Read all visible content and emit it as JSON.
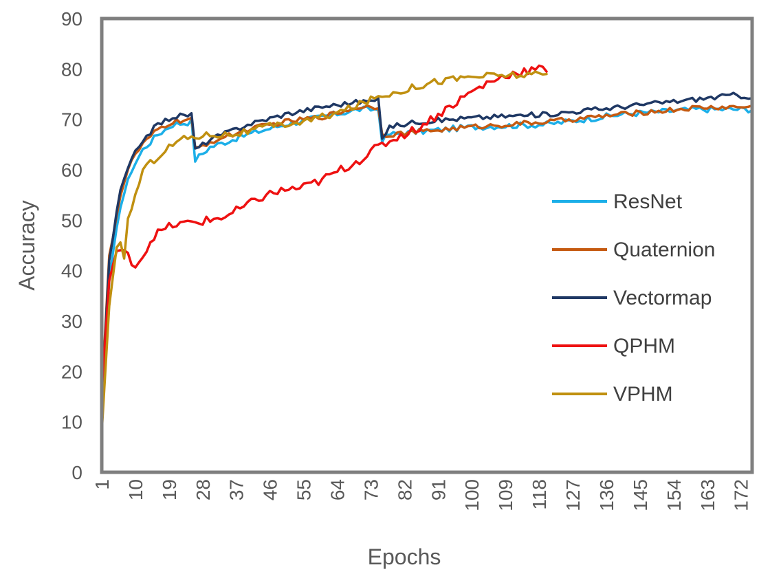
{
  "chart_data": {
    "type": "line",
    "title": "",
    "xlabel": "Epochs",
    "ylabel": "Accuracy",
    "xlim": [
      1,
      175
    ],
    "ylim": [
      0,
      90
    ],
    "y_ticks": [
      0,
      10,
      20,
      30,
      40,
      50,
      60,
      70,
      80,
      90
    ],
    "x_ticks": [
      1,
      10,
      19,
      28,
      37,
      46,
      55,
      64,
      73,
      82,
      91,
      100,
      109,
      118,
      127,
      136,
      145,
      154,
      163,
      172
    ],
    "y_tick_labels": [
      "0",
      "10",
      "20",
      "30",
      "40",
      "50",
      "60",
      "70",
      "80",
      "90"
    ],
    "x_tick_labels": [
      "1",
      "10",
      "19",
      "28",
      "37",
      "46",
      "55",
      "64",
      "73",
      "82",
      "91",
      "100",
      "109",
      "118",
      "127",
      "136",
      "145",
      "154",
      "163",
      "172"
    ],
    "grid": false,
    "legend": "right",
    "series": [
      {
        "name": "ResNet",
        "color": "#1CAFE8",
        "anchors": [
          [
            1,
            13
          ],
          [
            3,
            38
          ],
          [
            6,
            53
          ],
          [
            9,
            60
          ],
          [
            12,
            64
          ],
          [
            16,
            67
          ],
          [
            20,
            69
          ],
          [
            25,
            69.5
          ],
          [
            26,
            62
          ],
          [
            30,
            64.5
          ],
          [
            40,
            67
          ],
          [
            50,
            69
          ],
          [
            60,
            70.5
          ],
          [
            70,
            72
          ],
          [
            75,
            72
          ],
          [
            76,
            66
          ],
          [
            78,
            67
          ],
          [
            85,
            67.5
          ],
          [
            100,
            68.5
          ],
          [
            120,
            69
          ],
          [
            140,
            71
          ],
          [
            160,
            72
          ],
          [
            175,
            72
          ]
        ],
        "noise": 0.6
      },
      {
        "name": "Quaternion",
        "color": "#C55A11",
        "anchors": [
          [
            1,
            15
          ],
          [
            3,
            43
          ],
          [
            6,
            55
          ],
          [
            9,
            62
          ],
          [
            12,
            65
          ],
          [
            16,
            68
          ],
          [
            20,
            69.5
          ],
          [
            25,
            70
          ],
          [
            26,
            64
          ],
          [
            30,
            65.5
          ],
          [
            40,
            68
          ],
          [
            50,
            69.5
          ],
          [
            60,
            70.5
          ],
          [
            70,
            72.5
          ],
          [
            75,
            72.5
          ],
          [
            76,
            67
          ],
          [
            78,
            67
          ],
          [
            85,
            67.5
          ],
          [
            100,
            68.5
          ],
          [
            120,
            69.5
          ],
          [
            140,
            71
          ],
          [
            160,
            72.3
          ],
          [
            175,
            72.5
          ]
        ],
        "noise": 0.5
      },
      {
        "name": "Vectormap",
        "color": "#1F3864",
        "anchors": [
          [
            1,
            14
          ],
          [
            3,
            42
          ],
          [
            6,
            56
          ],
          [
            9,
            62
          ],
          [
            12,
            66
          ],
          [
            16,
            69
          ],
          [
            20,
            70.5
          ],
          [
            25,
            71
          ],
          [
            26,
            64
          ],
          [
            30,
            66
          ],
          [
            40,
            69
          ],
          [
            50,
            71
          ],
          [
            60,
            72.5
          ],
          [
            70,
            73.5
          ],
          [
            75,
            73.7
          ],
          [
            76,
            66.5
          ],
          [
            78,
            68.5
          ],
          [
            85,
            69.5
          ],
          [
            100,
            70.3
          ],
          [
            120,
            71
          ],
          [
            140,
            72.5
          ],
          [
            160,
            74
          ],
          [
            170,
            74.8
          ],
          [
            175,
            74.5
          ]
        ],
        "noise": 0.5
      },
      {
        "name": "QPHM",
        "color": "#EE1111",
        "anchors": [
          [
            1,
            16
          ],
          [
            2,
            27
          ],
          [
            3,
            38
          ],
          [
            5,
            44
          ],
          [
            8,
            43
          ],
          [
            10,
            41
          ],
          [
            12,
            43
          ],
          [
            15,
            47
          ],
          [
            20,
            49
          ],
          [
            25,
            49.5
          ],
          [
            30,
            50
          ],
          [
            35,
            51
          ],
          [
            40,
            53
          ],
          [
            45,
            55
          ],
          [
            50,
            56
          ],
          [
            55,
            56.5
          ],
          [
            60,
            58
          ],
          [
            65,
            60
          ],
          [
            70,
            62
          ],
          [
            75,
            64.5
          ],
          [
            80,
            66.5
          ],
          [
            85,
            68
          ],
          [
            90,
            70.5
          ],
          [
            95,
            73
          ],
          [
            100,
            75.5
          ],
          [
            105,
            77.5
          ],
          [
            110,
            79
          ],
          [
            115,
            79.7
          ],
          [
            120,
            80
          ]
        ],
        "noise": 0.9
      },
      {
        "name": "VPHM",
        "color": "#C09010",
        "anchors": [
          [
            1,
            8
          ],
          [
            3,
            33
          ],
          [
            5,
            44
          ],
          [
            6,
            45
          ],
          [
            7,
            43
          ],
          [
            8,
            50
          ],
          [
            10,
            55
          ],
          [
            12,
            60
          ],
          [
            15,
            62
          ],
          [
            18,
            64
          ],
          [
            22,
            66
          ],
          [
            25,
            66.5
          ],
          [
            30,
            67
          ],
          [
            35,
            67
          ],
          [
            40,
            67.5
          ],
          [
            45,
            68.5
          ],
          [
            50,
            69
          ],
          [
            55,
            69.5
          ],
          [
            60,
            70.5
          ],
          [
            65,
            71.5
          ],
          [
            70,
            73
          ],
          [
            75,
            74.5
          ],
          [
            80,
            75.5
          ],
          [
            85,
            76.5
          ],
          [
            90,
            77.5
          ],
          [
            95,
            78
          ],
          [
            100,
            78.5
          ],
          [
            110,
            78.8
          ],
          [
            120,
            78.8
          ]
        ],
        "noise": 0.7
      }
    ]
  }
}
